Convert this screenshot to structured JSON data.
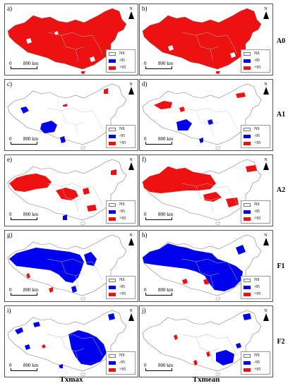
{
  "colors": {
    "ns": "#ffffff",
    "neg": "#0000ee",
    "pos": "#ee1111",
    "outline": "#808080"
  },
  "columns": [
    "Txmax",
    "Txmean"
  ],
  "rows": [
    "A0",
    "A1",
    "A2",
    "F1",
    "F2"
  ],
  "panels": [
    {
      "label": "a)"
    },
    {
      "label": "b)"
    },
    {
      "label": "c)"
    },
    {
      "label": "d)"
    },
    {
      "label": "e)"
    },
    {
      "label": "f)"
    },
    {
      "label": "g)"
    },
    {
      "label": "h)"
    },
    {
      "label": "i)"
    },
    {
      "label": "j)"
    }
  ],
  "legend": {
    "ns": "NS",
    "neg": "-95",
    "pos": "+95"
  },
  "scale": {
    "zero": "0",
    "distance": "800 km"
  },
  "north": "N"
}
